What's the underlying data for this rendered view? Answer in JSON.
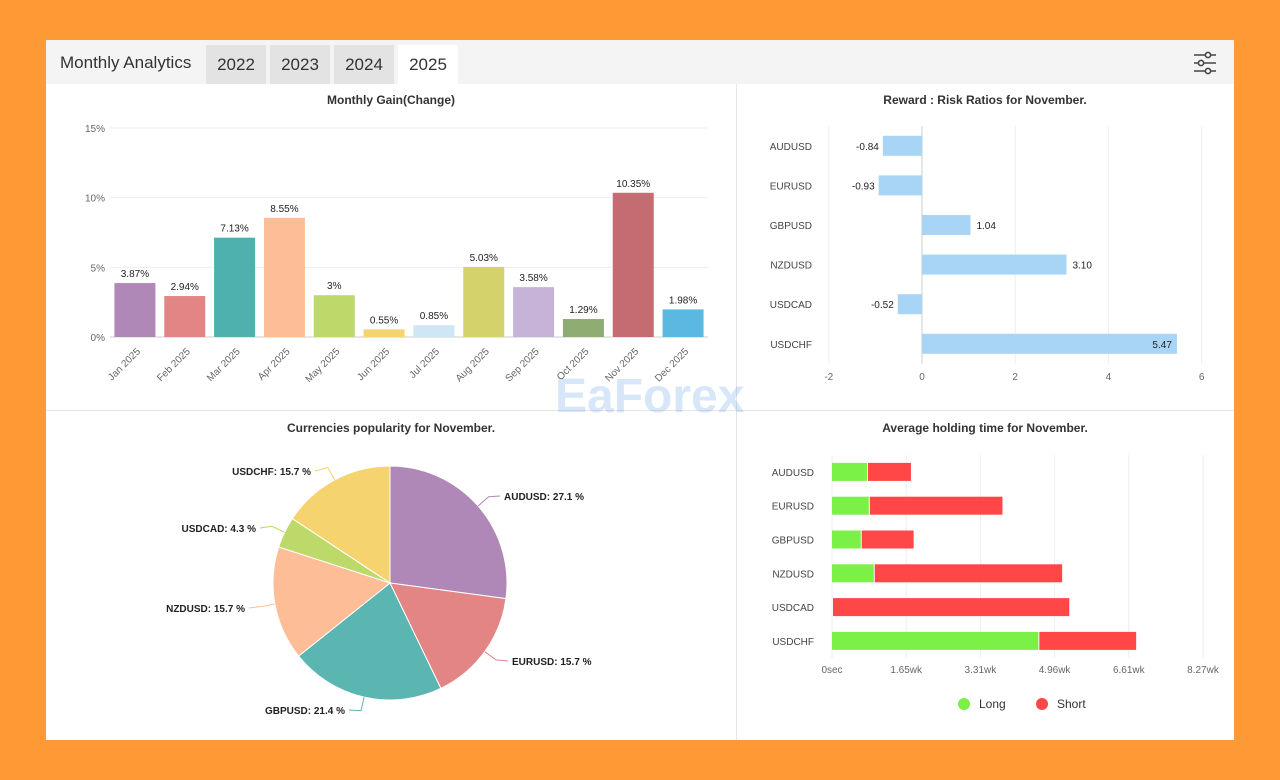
{
  "header": {
    "title": "Monthly Analytics",
    "tabs": [
      {
        "label": "2022",
        "active": false
      },
      {
        "label": "2023",
        "active": false
      },
      {
        "label": "2024",
        "active": false
      },
      {
        "label": "2025",
        "active": true
      }
    ],
    "settings_icon": "sliders-icon"
  },
  "watermark": "EaForex",
  "chart_data": [
    {
      "type": "bar",
      "title": "Monthly Gain(Change)",
      "categories": [
        "Jan 2025",
        "Feb 2025",
        "Mar 2025",
        "Apr 2025",
        "May 2025",
        "Jun 2025",
        "Jul 2025",
        "Aug 2025",
        "Sep 2025",
        "Oct 2025",
        "Nov 2025",
        "Dec 2025"
      ],
      "values": [
        3.87,
        2.94,
        7.13,
        8.55,
        3,
        0.55,
        0.85,
        5.03,
        3.58,
        1.29,
        10.35,
        1.98
      ],
      "labels": [
        "3.87%",
        "2.94%",
        "7.13%",
        "8.55%",
        "3%",
        "0.55%",
        "0.85%",
        "5.03%",
        "3.58%",
        "1.29%",
        "10.35%",
        "1.98%"
      ],
      "colors": [
        "#b088b8",
        "#e38585",
        "#4fb1ad",
        "#fdbd96",
        "#bcd96a",
        "#f5d36e",
        "#cfe6f7",
        "#d4d26a",
        "#c7b3d8",
        "#8fad73",
        "#c56c73",
        "#5bb8e0"
      ],
      "yticks": [
        "0%",
        "5%",
        "10%",
        "15%"
      ],
      "ylim": [
        0,
        15
      ]
    },
    {
      "type": "bar",
      "orientation": "horizontal",
      "title": "Reward : Risk Ratios for November.",
      "categories": [
        "AUDUSD",
        "EURUSD",
        "GBPUSD",
        "NZDUSD",
        "USDCAD",
        "USDCHF"
      ],
      "values": [
        -0.84,
        -0.93,
        1.04,
        3.1,
        -0.52,
        5.47
      ],
      "labels": [
        "-0.84",
        "-0.93",
        "1.04",
        "3.10",
        "-0.52",
        "5.47"
      ],
      "color": "#a8d4f5",
      "xticks": [
        "-2",
        "0",
        "2",
        "4",
        "6"
      ],
      "xlim": [
        -2,
        6
      ]
    },
    {
      "type": "pie",
      "title": "Currencies popularity for November.",
      "categories": [
        "AUDUSD",
        "EURUSD",
        "GBPUSD",
        "NZDUSD",
        "USDCAD",
        "USDCHF"
      ],
      "values": [
        27.1,
        15.7,
        21.4,
        15.7,
        4.3,
        15.7
      ],
      "labels": [
        "AUDUSD: 27.1 %",
        "EURUSD: 15.7 %",
        "GBPUSD: 21.4 %",
        "NZDUSD: 15.7 %",
        "USDCAD: 4.3 %",
        "USDCHF: 15.7 %"
      ],
      "colors": [
        "#b088b8",
        "#e38585",
        "#5bb5b0",
        "#fdbd96",
        "#bcd96a",
        "#f5d36e"
      ]
    },
    {
      "type": "bar",
      "orientation": "horizontal",
      "stacked": true,
      "title": "Average holding time for November.",
      "categories": [
        "AUDUSD",
        "EURUSD",
        "GBPUSD",
        "NZDUSD",
        "USDCAD",
        "USDCHF"
      ],
      "series": [
        {
          "name": "Long",
          "color": "#7bf046",
          "values": [
            0.78,
            0.82,
            0.64,
            0.93,
            0,
            4.6
          ]
        },
        {
          "name": "Short",
          "color": "#ff4747",
          "values": [
            0.98,
            2.98,
            1.18,
            4.2,
            5.29,
            2.18
          ]
        }
      ],
      "unit": "wk",
      "xticks": [
        "0sec",
        "1.65wk",
        "3.31wk",
        "4.96wk",
        "6.61wk",
        "8.27wk"
      ],
      "xlim": [
        0,
        8.27
      ]
    }
  ]
}
